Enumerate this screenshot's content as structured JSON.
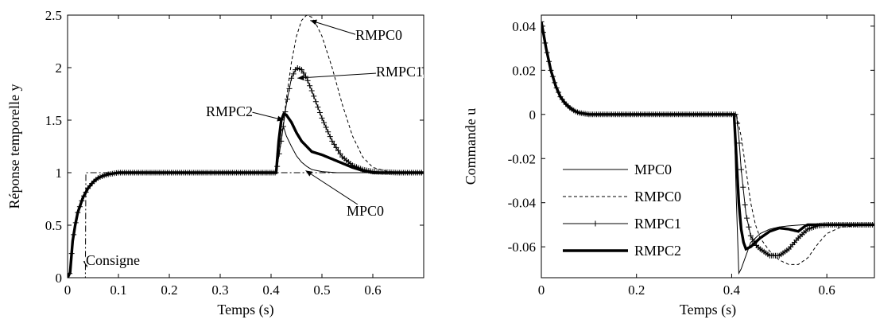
{
  "chart_data": [
    {
      "type": "line",
      "xlabel": "Temps (s)",
      "ylabel": "Réponse temporelle y",
      "xlim": [
        0,
        0.7
      ],
      "ylim": [
        0,
        2.5
      ],
      "xticks": [
        0,
        0.1,
        0.2,
        0.3,
        0.4,
        0.5,
        0.6
      ],
      "xtick_labels": [
        "0",
        "0.1",
        "0.2",
        "0.3",
        "0.4",
        "0.5",
        "0.6"
      ],
      "yticks": [
        0,
        0.5,
        1,
        1.5,
        2,
        2.5
      ],
      "ytick_labels": [
        "0",
        "0.5",
        "1",
        "1.5",
        "2",
        "2.5"
      ],
      "grid": false,
      "annotations": [
        {
          "text": "RMPC0",
          "series": "RMPC0",
          "at": [
            0.477,
            2.45
          ]
        },
        {
          "text": "RMPC1",
          "series": "RMPC1",
          "at": [
            0.452,
            1.9
          ]
        },
        {
          "text": "RMPC2",
          "series": "RMPC2",
          "at": [
            0.425,
            1.5
          ]
        },
        {
          "text": "MPC0",
          "series": "MPC0",
          "at": [
            0.468,
            1.02
          ]
        },
        {
          "text": "Consigne",
          "series": "Consigne",
          "at": [
            0.038,
            0.1
          ]
        }
      ],
      "series": [
        {
          "name": "Consigne",
          "style": "dash-dot",
          "x": [
            0,
            0.035,
            0.035,
            0.41,
            0.41,
            0.7
          ],
          "y": [
            0,
            0,
            1,
            1,
            1,
            1
          ]
        },
        {
          "name": "MPC0",
          "style": "thin",
          "x": [
            0,
            0.005,
            0.01,
            0.015,
            0.02,
            0.03,
            0.04,
            0.05,
            0.06,
            0.07,
            0.08,
            0.1,
            0.41,
            0.415,
            0.42,
            0.425,
            0.43,
            0.44,
            0.45,
            0.46,
            0.47,
            0.48,
            0.5,
            0.53,
            0.7
          ],
          "y": [
            0,
            0.05,
            0.35,
            0.5,
            0.62,
            0.76,
            0.85,
            0.91,
            0.95,
            0.97,
            0.985,
            1.0,
            1.0,
            1.2,
            1.4,
            1.43,
            1.35,
            1.25,
            1.16,
            1.1,
            1.06,
            1.03,
            1.01,
            1.0,
            1.0
          ]
        },
        {
          "name": "RMPC0",
          "style": "dashed",
          "x": [
            0,
            0.005,
            0.01,
            0.015,
            0.02,
            0.03,
            0.04,
            0.05,
            0.06,
            0.07,
            0.08,
            0.1,
            0.41,
            0.42,
            0.43,
            0.44,
            0.45,
            0.46,
            0.47,
            0.48,
            0.49,
            0.5,
            0.52,
            0.54,
            0.56,
            0.58,
            0.6,
            0.63,
            0.7
          ],
          "y": [
            0,
            0.05,
            0.35,
            0.5,
            0.62,
            0.76,
            0.85,
            0.91,
            0.95,
            0.97,
            0.985,
            1.0,
            1.0,
            1.3,
            1.7,
            2.05,
            2.3,
            2.45,
            2.5,
            2.48,
            2.4,
            2.3,
            2.0,
            1.65,
            1.35,
            1.15,
            1.05,
            1.01,
            1.0
          ]
        },
        {
          "name": "RMPC1",
          "style": "plus",
          "x": [
            0,
            0.005,
            0.01,
            0.015,
            0.02,
            0.03,
            0.04,
            0.05,
            0.06,
            0.07,
            0.08,
            0.1,
            0.41,
            0.42,
            0.43,
            0.44,
            0.45,
            0.46,
            0.47,
            0.48,
            0.49,
            0.5,
            0.52,
            0.54,
            0.56,
            0.58,
            0.6,
            0.65,
            0.7
          ],
          "y": [
            0,
            0.05,
            0.35,
            0.5,
            0.62,
            0.76,
            0.85,
            0.91,
            0.95,
            0.97,
            0.985,
            1.0,
            1.0,
            1.3,
            1.65,
            1.9,
            2.0,
            1.98,
            1.9,
            1.78,
            1.65,
            1.52,
            1.3,
            1.15,
            1.07,
            1.03,
            1.01,
            1.0,
            1.0
          ]
        },
        {
          "name": "RMPC2",
          "style": "thick",
          "x": [
            0,
            0.005,
            0.01,
            0.015,
            0.02,
            0.03,
            0.04,
            0.05,
            0.06,
            0.07,
            0.08,
            0.1,
            0.41,
            0.415,
            0.42,
            0.425,
            0.43,
            0.44,
            0.45,
            0.46,
            0.48,
            0.5,
            0.52,
            0.54,
            0.56,
            0.58,
            0.6,
            0.65,
            0.7
          ],
          "y": [
            0,
            0.05,
            0.35,
            0.5,
            0.62,
            0.76,
            0.85,
            0.91,
            0.95,
            0.97,
            0.985,
            1.0,
            1.0,
            1.3,
            1.5,
            1.56,
            1.55,
            1.48,
            1.38,
            1.3,
            1.2,
            1.17,
            1.13,
            1.09,
            1.05,
            1.02,
            1.0,
            1.0,
            1.0
          ]
        }
      ]
    },
    {
      "type": "line",
      "xlabel": "Temps (s)",
      "ylabel": "Commande u",
      "xlim": [
        0,
        0.7
      ],
      "ylim": [
        -0.074,
        0.045
      ],
      "xticks": [
        0,
        0.2,
        0.4,
        0.6
      ],
      "xtick_labels": [
        "0",
        "0.2",
        "0.4",
        "0.6"
      ],
      "yticks": [
        -0.06,
        -0.04,
        -0.02,
        0,
        0.02,
        0.04
      ],
      "ytick_labels": [
        "-0.06",
        "-0.04",
        "-0.02",
        "0",
        "0.02",
        "0.04"
      ],
      "grid": false,
      "legend": {
        "position": "bottom-left",
        "entries": [
          "MPC0",
          "RMPC0",
          "RMPC1",
          "RMPC2"
        ]
      },
      "series": [
        {
          "name": "MPC0",
          "style": "thin",
          "x": [
            0,
            0.01,
            0.02,
            0.03,
            0.04,
            0.05,
            0.06,
            0.07,
            0.08,
            0.1,
            0.405,
            0.41,
            0.415,
            0.42,
            0.43,
            0.44,
            0.46,
            0.48,
            0.5,
            0.52,
            0.55,
            0.6,
            0.7
          ],
          "y": [
            0.042,
            0.03,
            0.02,
            0.013,
            0.008,
            0.005,
            0.003,
            0.0015,
            0.0007,
            0,
            0,
            -0.04,
            -0.072,
            -0.07,
            -0.064,
            -0.058,
            -0.054,
            -0.052,
            -0.051,
            -0.0505,
            -0.05,
            -0.05,
            -0.05
          ]
        },
        {
          "name": "RMPC0",
          "style": "dashed",
          "x": [
            0,
            0.01,
            0.02,
            0.03,
            0.04,
            0.05,
            0.06,
            0.07,
            0.08,
            0.1,
            0.41,
            0.42,
            0.43,
            0.44,
            0.45,
            0.46,
            0.48,
            0.5,
            0.52,
            0.54,
            0.56,
            0.58,
            0.6,
            0.63,
            0.7
          ],
          "y": [
            0.042,
            0.03,
            0.02,
            0.013,
            0.008,
            0.005,
            0.003,
            0.0015,
            0.0007,
            0,
            0,
            -0.01,
            -0.025,
            -0.04,
            -0.05,
            -0.056,
            -0.062,
            -0.066,
            -0.068,
            -0.068,
            -0.065,
            -0.059,
            -0.054,
            -0.051,
            -0.05
          ]
        },
        {
          "name": "RMPC1",
          "style": "plus",
          "x": [
            0,
            0.01,
            0.02,
            0.03,
            0.04,
            0.05,
            0.06,
            0.07,
            0.08,
            0.1,
            0.41,
            0.415,
            0.42,
            0.43,
            0.44,
            0.45,
            0.46,
            0.48,
            0.5,
            0.52,
            0.54,
            0.56,
            0.58,
            0.6,
            0.65,
            0.7
          ],
          "y": [
            0.042,
            0.03,
            0.02,
            0.013,
            0.008,
            0.005,
            0.003,
            0.0015,
            0.0007,
            0,
            0,
            -0.01,
            -0.025,
            -0.045,
            -0.055,
            -0.059,
            -0.061,
            -0.064,
            -0.064,
            -0.061,
            -0.056,
            -0.052,
            -0.0505,
            -0.05,
            -0.05,
            -0.05
          ]
        },
        {
          "name": "RMPC2",
          "style": "thick",
          "x": [
            0,
            0.01,
            0.02,
            0.03,
            0.04,
            0.05,
            0.06,
            0.07,
            0.08,
            0.1,
            0.405,
            0.41,
            0.415,
            0.42,
            0.425,
            0.43,
            0.44,
            0.45,
            0.46,
            0.48,
            0.5,
            0.52,
            0.54,
            0.555,
            0.56,
            0.58,
            0.6,
            0.7
          ],
          "y": [
            0.042,
            0.03,
            0.02,
            0.013,
            0.008,
            0.005,
            0.003,
            0.0015,
            0.0007,
            0,
            0,
            -0.02,
            -0.04,
            -0.052,
            -0.058,
            -0.061,
            -0.06,
            -0.058,
            -0.056,
            -0.053,
            -0.0515,
            -0.052,
            -0.053,
            -0.0505,
            -0.05,
            -0.05,
            -0.05,
            -0.05
          ]
        }
      ]
    }
  ]
}
